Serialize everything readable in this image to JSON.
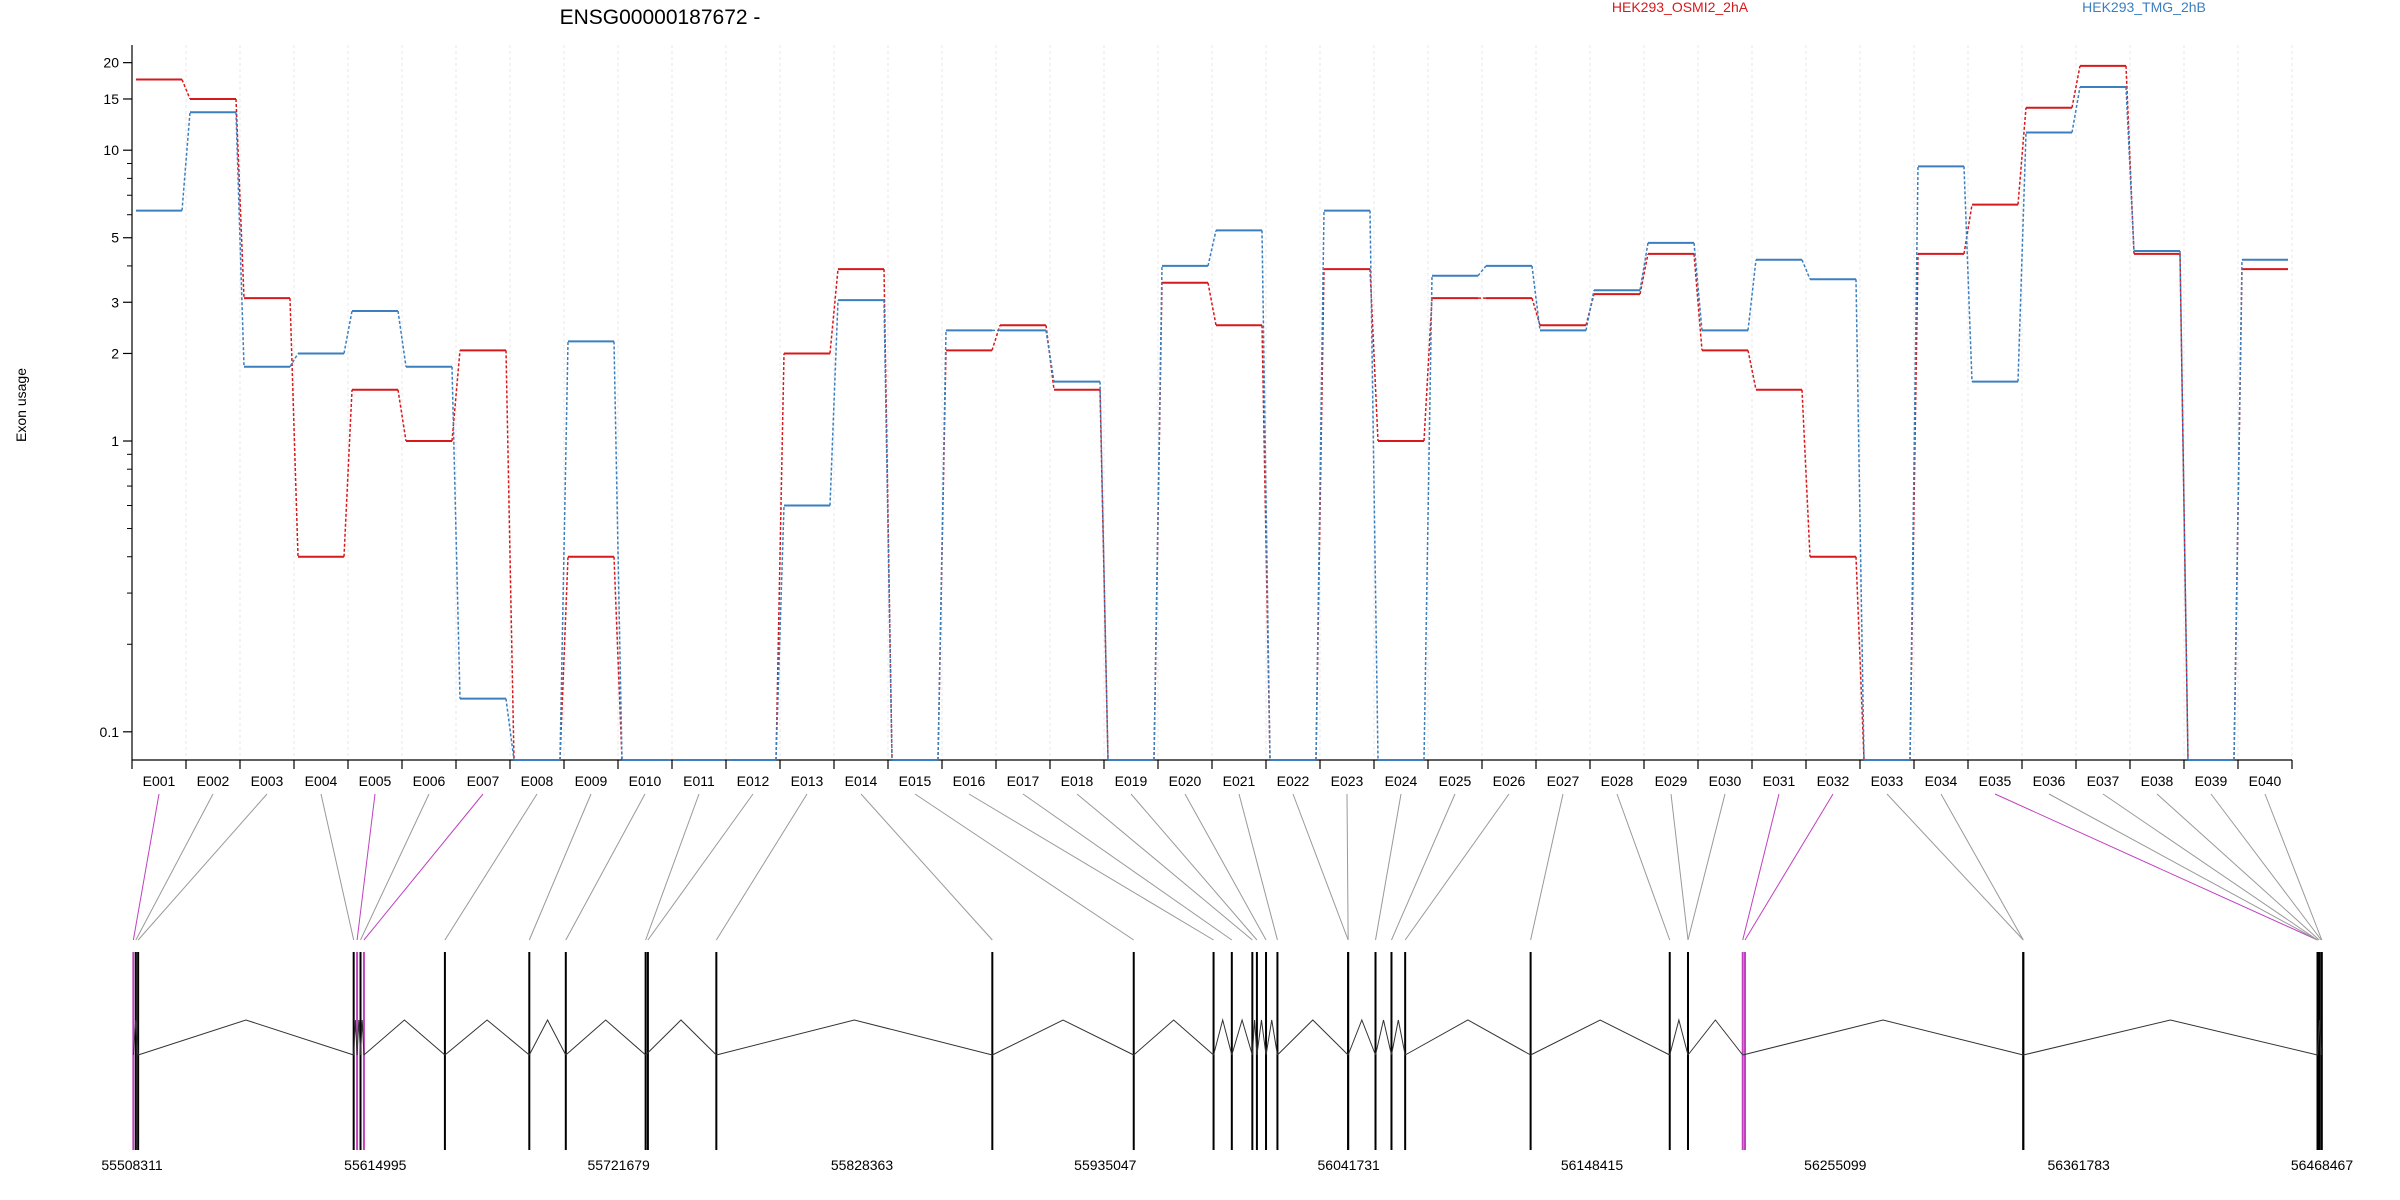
{
  "chart_data": {
    "type": "line",
    "title": "ENSG00000187672 -",
    "xlabel": "",
    "ylabel": "Exon usage",
    "y_scale": "log",
    "ylim": [
      0.08,
      23
    ],
    "yticks": [
      0.1,
      1,
      2,
      3,
      5,
      10,
      15,
      20
    ],
    "ytick_labels": [
      "0.1",
      "1",
      "2",
      "3",
      "5",
      "10",
      "15",
      "20"
    ],
    "grid": true,
    "legend": "top, inline text labels",
    "colors": {
      "HEK293_OSMI2_2hA": "#d7191c",
      "HEK293_TMG_2hB": "#3b7fbf",
      "highlight": "#c040c0"
    },
    "categories": [
      "E001",
      "E002",
      "E003",
      "E004",
      "E005",
      "E006",
      "E007",
      "E008",
      "E009",
      "E010",
      "E011",
      "E012",
      "E013",
      "E014",
      "E015",
      "E016",
      "E017",
      "E018",
      "E019",
      "E020",
      "E021",
      "E022",
      "E023",
      "E024",
      "E025",
      "E026",
      "E027",
      "E028",
      "E029",
      "E030",
      "E031",
      "E032",
      "E033",
      "E034",
      "E035",
      "E036",
      "E037",
      "E038",
      "E039",
      "E040"
    ],
    "series": [
      {
        "name": "HEK293_OSMI2_2hA",
        "values": [
          17.5,
          15,
          3.1,
          0.4,
          1.5,
          1.0,
          2.05,
          0.08,
          0.4,
          0.08,
          0.08,
          0.08,
          2.0,
          3.9,
          0.08,
          2.05,
          2.5,
          1.5,
          0.08,
          3.5,
          2.5,
          0.08,
          3.9,
          1.0,
          3.1,
          3.1,
          2.5,
          3.2,
          4.4,
          2.05,
          1.5,
          0.4,
          0.08,
          4.4,
          6.5,
          14,
          19.5,
          4.4,
          0.08,
          3.9
        ]
      },
      {
        "name": "HEK293_TMG_2hB",
        "values": [
          6.2,
          13.5,
          1.8,
          2.0,
          2.8,
          1.8,
          0.13,
          0.08,
          2.2,
          0.08,
          0.08,
          0.08,
          0.6,
          3.05,
          0.08,
          2.4,
          2.4,
          1.6,
          0.08,
          4.0,
          5.3,
          0.08,
          6.2,
          0.08,
          3.7,
          4.0,
          2.4,
          3.3,
          4.8,
          2.4,
          4.2,
          3.6,
          0.08,
          8.8,
          1.6,
          11.5,
          16.5,
          4.5,
          0.08,
          4.2
        ]
      }
    ],
    "genomic_axis": {
      "tick_labels": [
        "55508311",
        "55614995",
        "55721679",
        "55828363",
        "55935047",
        "56041731",
        "56148415",
        "56255099",
        "56361783",
        "56468467"
      ],
      "range": [
        55508311,
        56468467
      ]
    },
    "exon_positions": [
      {
        "id": "E001",
        "start": 55508311,
        "end": 55509500,
        "highlight": true
      },
      {
        "id": "E002",
        "start": 55509500,
        "end": 55510500
      },
      {
        "id": "E003",
        "start": 55510500,
        "end": 55511500
      },
      {
        "id": "E004",
        "start": 55605000,
        "end": 55606000
      },
      {
        "id": "E005",
        "start": 55606500,
        "end": 55607500,
        "highlight": true
      },
      {
        "id": "E006",
        "start": 55608000,
        "end": 55609000
      },
      {
        "id": "E007",
        "start": 55609500,
        "end": 55610500,
        "highlight": true
      },
      {
        "id": "E008",
        "start": 55645000,
        "end": 55646000
      },
      {
        "id": "E009",
        "start": 55682000,
        "end": 55683000
      },
      {
        "id": "E010",
        "start": 55698000,
        "end": 55699000
      },
      {
        "id": "E011",
        "start": 55733000,
        "end": 55734000
      },
      {
        "id": "E012",
        "start": 55734000,
        "end": 55735000
      },
      {
        "id": "E013",
        "start": 55764000,
        "end": 55765000
      },
      {
        "id": "E014",
        "start": 55885000,
        "end": 55886000
      },
      {
        "id": "E015",
        "start": 55947000,
        "end": 55948000
      },
      {
        "id": "E016",
        "start": 55982000,
        "end": 55983000
      },
      {
        "id": "E017",
        "start": 55990000,
        "end": 55991000
      },
      {
        "id": "E018",
        "start": 55999000,
        "end": 56000000
      },
      {
        "id": "E019",
        "start": 56001000,
        "end": 56002000
      },
      {
        "id": "E020",
        "start": 56005000,
        "end": 56006000
      },
      {
        "id": "E021",
        "start": 56010000,
        "end": 56011000
      },
      {
        "id": "E022",
        "start": 56041000,
        "end": 56042000
      },
      {
        "id": "E023",
        "start": 56041000,
        "end": 56042000
      },
      {
        "id": "E024",
        "start": 56053000,
        "end": 56054000
      },
      {
        "id": "E025",
        "start": 56060000,
        "end": 56061000
      },
      {
        "id": "E026",
        "start": 56066000,
        "end": 56067000
      },
      {
        "id": "E027",
        "start": 56121000,
        "end": 56122000
      },
      {
        "id": "E028",
        "start": 56182000,
        "end": 56183000
      },
      {
        "id": "E029",
        "start": 56190000,
        "end": 56191000
      },
      {
        "id": "E030",
        "start": 56190000,
        "end": 56191000
      },
      {
        "id": "E031",
        "start": 56214000,
        "end": 56215000,
        "highlight": true
      },
      {
        "id": "E032",
        "start": 56215000,
        "end": 56216000,
        "highlight": true
      },
      {
        "id": "E033",
        "start": 56337000,
        "end": 56338000
      },
      {
        "id": "E034",
        "start": 56337000,
        "end": 56338000
      },
      {
        "id": "E035",
        "start": 56466000,
        "end": 56467000,
        "highlight": true
      },
      {
        "id": "E036",
        "start": 56466000,
        "end": 56467000
      },
      {
        "id": "E037",
        "start": 56466000,
        "end": 56467000
      },
      {
        "id": "E038",
        "start": 56467000,
        "end": 56467500
      },
      {
        "id": "E039",
        "start": 56468000,
        "end": 56468300
      },
      {
        "id": "E040",
        "start": 56468300,
        "end": 56468467
      }
    ]
  }
}
